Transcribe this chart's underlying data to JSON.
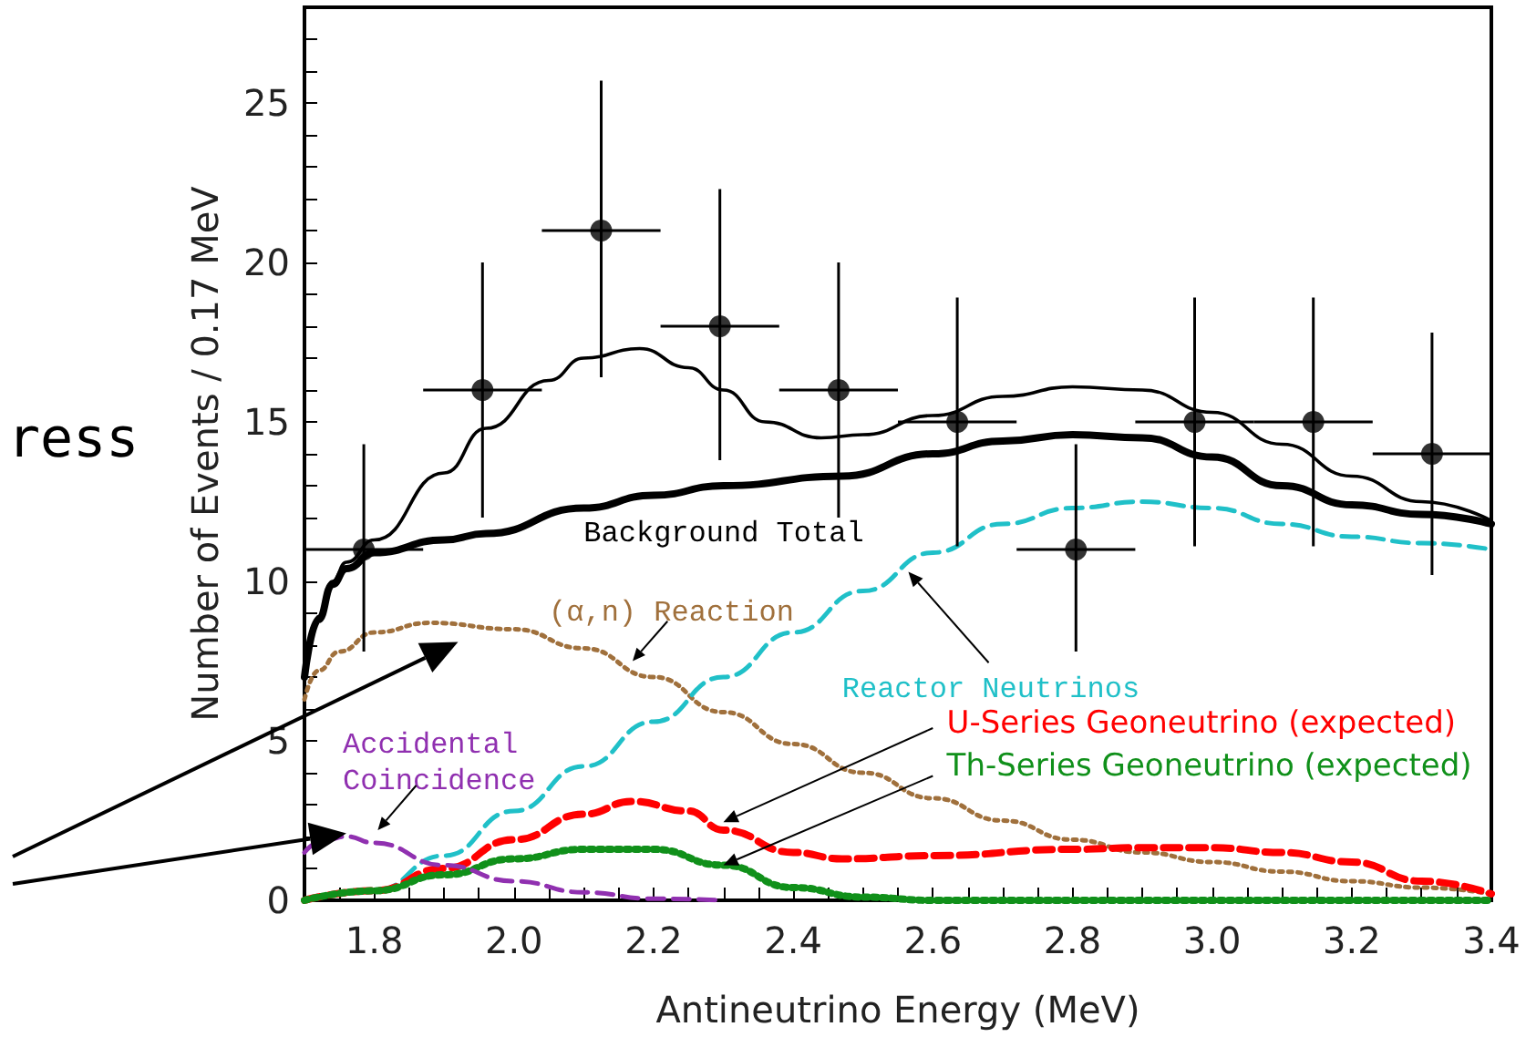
{
  "chart_data": {
    "type": "line",
    "xlabel": "Antineutrino Energy (MeV)",
    "ylabel": "Number of Events / 0.17 MeV",
    "xlim": [
      1.7,
      3.4
    ],
    "xticks": [
      {
        "value": 1.75,
        "label": null
      },
      1.8,
      {
        "value": 1.85,
        "label": null
      },
      {
        "value": 1.9,
        "label": null
      },
      {
        "value": 1.95,
        "label": null
      },
      {
        "value": 2.0,
        "label": "2.0"
      },
      {
        "value": 2.05,
        "label": null
      },
      {
        "value": 2.1,
        "label": null
      },
      {
        "value": 2.15,
        "label": null
      },
      2.2,
      {
        "value": 2.25,
        "label": null
      },
      {
        "value": 2.3,
        "label": null
      },
      {
        "value": 2.35,
        "label": null
      },
      2.4,
      {
        "value": 2.45,
        "label": null
      },
      {
        "value": 2.5,
        "label": null
      },
      {
        "value": 2.55,
        "label": null
      },
      2.6,
      {
        "value": 2.65,
        "label": null
      },
      {
        "value": 2.7,
        "label": null
      },
      {
        "value": 2.75,
        "label": null
      },
      2.8,
      {
        "value": 2.85,
        "label": null
      },
      {
        "value": 2.9,
        "label": null
      },
      {
        "value": 2.95,
        "label": null
      },
      {
        "value": 3.0,
        "label": "3.0"
      },
      {
        "value": 3.05,
        "label": null
      },
      {
        "value": 3.1,
        "label": null
      },
      {
        "value": 3.15,
        "label": null
      },
      3.2,
      {
        "value": 3.25,
        "label": null
      },
      {
        "value": 3.3,
        "label": null
      },
      {
        "value": 3.35,
        "label": null
      },
      3.4
    ],
    "ylim": [
      0,
      28
    ],
    "yticks": [
      0,
      {
        "value": 1,
        "label": null
      },
      {
        "value": 2,
        "label": null
      },
      {
        "value": 3,
        "label": null
      },
      {
        "value": 4,
        "label": null
      },
      5,
      {
        "value": 6,
        "label": null
      },
      {
        "value": 7,
        "label": null
      },
      {
        "value": 8,
        "label": null
      },
      {
        "value": 9,
        "label": null
      },
      10,
      {
        "value": 11,
        "label": null
      },
      {
        "value": 12,
        "label": null
      },
      {
        "value": 13,
        "label": null
      },
      {
        "value": 14,
        "label": null
      },
      15,
      {
        "value": 16,
        "label": null
      },
      {
        "value": 17,
        "label": null
      },
      {
        "value": 18,
        "label": null
      },
      {
        "value": 19,
        "label": null
      },
      20,
      {
        "value": 21,
        "label": null
      },
      {
        "value": 22,
        "label": null
      },
      {
        "value": 23,
        "label": null
      },
      {
        "value": 24,
        "label": null
      },
      25,
      {
        "value": 26,
        "label": null
      },
      {
        "value": 27,
        "label": null
      }
    ],
    "grid": false,
    "legend": false,
    "series": [
      {
        "name": "Background Total",
        "color": "#000000",
        "line_style": "solid",
        "marker": "none",
        "x": [
          1.7,
          1.72,
          1.74,
          1.76,
          1.8,
          1.9,
          1.96,
          2.1,
          2.2,
          2.3,
          2.47,
          2.6,
          2.7,
          2.8,
          2.9,
          3.0,
          3.1,
          3.2,
          3.3,
          3.4
        ],
        "values": [
          7,
          8.8,
          9.9,
          10.4,
          10.9,
          11.3,
          11.5,
          12.3,
          12.7,
          13.0,
          13.3,
          14.0,
          14.4,
          14.6,
          14.5,
          13.9,
          13.0,
          12.4,
          12.1,
          11.8
        ]
      },
      {
        "name": "(α,n) Reaction",
        "color": "#a0703c",
        "line_style": "dotted",
        "marker": "none",
        "x": [
          1.7,
          1.72,
          1.75,
          1.8,
          1.88,
          2.0,
          2.1,
          2.2,
          2.3,
          2.4,
          2.5,
          2.6,
          2.7,
          2.8,
          2.9,
          3.0,
          3.1,
          3.2,
          3.3,
          3.4
        ],
        "values": [
          6.3,
          7.2,
          7.8,
          8.4,
          8.7,
          8.5,
          7.9,
          7.0,
          5.9,
          4.9,
          4.0,
          3.2,
          2.5,
          1.9,
          1.5,
          1.2,
          0.9,
          0.6,
          0.4,
          0.2
        ]
      },
      {
        "name": "Reactor Neutrinos",
        "color": "#20c0c8",
        "line_style": "dashed",
        "marker": "none",
        "x": [
          1.7,
          1.8,
          1.9,
          2.0,
          2.1,
          2.2,
          2.3,
          2.4,
          2.5,
          2.6,
          2.7,
          2.8,
          2.9,
          3.0,
          3.1,
          3.2,
          3.3,
          3.4
        ],
        "values": [
          0,
          0.3,
          1.4,
          2.8,
          4.2,
          5.6,
          7.0,
          8.4,
          9.7,
          10.9,
          11.8,
          12.3,
          12.5,
          12.3,
          11.8,
          11.4,
          11.2,
          11.0
        ]
      },
      {
        "name": "U-Series Geoneutrino (expected)",
        "color": "#ff0000",
        "line_style": "dashed",
        "marker": "none",
        "x": [
          1.7,
          1.8,
          1.9,
          2.0,
          2.1,
          2.17,
          2.25,
          2.3,
          2.4,
          2.47,
          2.6,
          2.8,
          2.9,
          3.0,
          3.1,
          3.2,
          3.3,
          3.4
        ],
        "values": [
          0,
          0.3,
          1.0,
          1.9,
          2.7,
          3.1,
          2.8,
          2.2,
          1.5,
          1.3,
          1.4,
          1.6,
          1.65,
          1.65,
          1.5,
          1.2,
          0.6,
          0.2
        ]
      },
      {
        "name": "Th-Series Geoneutrino (expected)",
        "color": "#10901a",
        "line_style": "dotted",
        "marker": "none",
        "x": [
          1.7,
          1.8,
          1.9,
          2.0,
          2.1,
          2.2,
          2.3,
          2.4,
          2.5,
          2.6,
          2.8,
          3.0,
          3.2,
          3.4
        ],
        "values": [
          0,
          0.3,
          0.8,
          1.3,
          1.6,
          1.6,
          1.1,
          0.4,
          0.1,
          0,
          0,
          0,
          0,
          0
        ]
      },
      {
        "name": "Accidental\nCoincidence",
        "color": "#9030b0",
        "line_style": "dashed",
        "marker": "none",
        "x": [
          1.7,
          1.73,
          1.76,
          1.8,
          1.9,
          2.0,
          2.1,
          2.2,
          2.3
        ],
        "values": [
          1.5,
          1.9,
          2.0,
          1.8,
          1.1,
          0.6,
          0.25,
          0.05,
          0
        ]
      },
      {
        "color": "#000000",
        "line_style": "solid",
        "marker": "none",
        "x": [
          1.7,
          1.72,
          1.74,
          1.76,
          1.8,
          1.9,
          1.96,
          2.05,
          2.1,
          2.18,
          2.25,
          2.3,
          2.36,
          2.44,
          2.5,
          2.6,
          2.7,
          2.8,
          2.9,
          3.0,
          3.1,
          3.2,
          3.3,
          3.4
        ],
        "values": [
          7,
          8.9,
          10.0,
          10.6,
          11.3,
          13.4,
          14.8,
          16.3,
          17.0,
          17.3,
          16.7,
          16.0,
          15.0,
          14.5,
          14.6,
          15.2,
          15.8,
          16.1,
          16.0,
          15.3,
          14.3,
          13.3,
          12.5,
          11.9
        ]
      },
      {
        "type": "scatter",
        "color": "#000000",
        "marker": "circle",
        "x": [
          1.785,
          1.955,
          2.125,
          2.295,
          2.465,
          2.635,
          2.805,
          2.975,
          3.145,
          3.315
        ],
        "values": [
          11,
          16,
          21,
          18,
          16,
          15,
          11,
          15,
          15,
          14
        ],
        "errors": [
          [
            7.8,
            14.3
          ],
          [
            12.0,
            20.0
          ],
          [
            16.4,
            25.7
          ],
          [
            13.8,
            22.3
          ],
          [
            12.0,
            20.0
          ],
          [
            11.1,
            18.9
          ],
          [
            7.8,
            14.3
          ],
          [
            11.1,
            18.9
          ],
          [
            11.1,
            18.9
          ],
          [
            10.2,
            17.8
          ]
        ],
        "xerrors": [
          0.085,
          0.085,
          0.085,
          0.085,
          0.085,
          0.085,
          0.085,
          0.085,
          0.085,
          0.085
        ]
      }
    ],
    "annotations": [
      "ress"
    ]
  }
}
